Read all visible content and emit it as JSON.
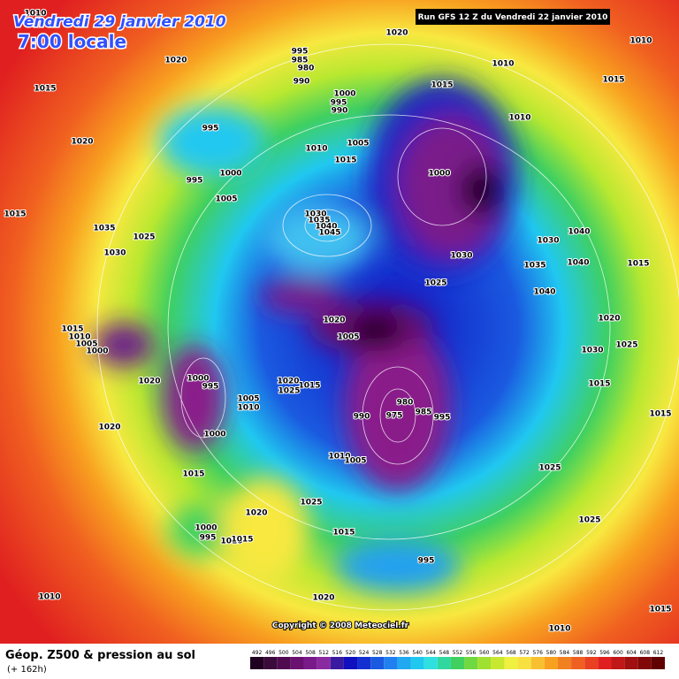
{
  "header": {
    "date": "Vendredi 29 janvier 2010",
    "time": "7:00 locale",
    "run": "Run GFS 12 Z du Vendredi 22 janvier 2010"
  },
  "map": {
    "pressure_labels": [
      1010,
      1020,
      1020,
      995,
      985,
      980,
      990,
      1010,
      1010,
      1015,
      1015,
      1015,
      1000,
      995,
      990,
      1010,
      1020,
      995,
      1010,
      1005,
      1015,
      1000,
      1000,
      995,
      1005,
      1015,
      1030,
      1035,
      1040,
      1045,
      1035,
      1025,
      1030,
      1030,
      1040,
      1030,
      1035,
      1040,
      1015,
      1025,
      1040,
      1020,
      1005,
      1020,
      1015,
      1010,
      1005,
      1000,
      1030,
      1025,
      1020,
      1000,
      995,
      1020,
      1015,
      1025,
      1015,
      980,
      1005,
      1010,
      990,
      975,
      985,
      995,
      1015,
      1020,
      1000,
      1010,
      1005,
      1025,
      1015,
      1025,
      1020,
      1000,
      995,
      1010,
      1015,
      1015,
      1025,
      995,
      1010,
      1020,
      1010,
      1015
    ],
    "copyright": "Copyright © 2008 Meteociel.fr"
  },
  "footer": {
    "title": "Géop. Z500 & pression au sol",
    "subtitle": "(+ 162h)",
    "scale": [
      492,
      496,
      500,
      504,
      508,
      512,
      516,
      520,
      524,
      528,
      532,
      536,
      540,
      544,
      548,
      552,
      556,
      560,
      564,
      568,
      572,
      576,
      580,
      584,
      588,
      592,
      596,
      600,
      604,
      608,
      612
    ]
  }
}
